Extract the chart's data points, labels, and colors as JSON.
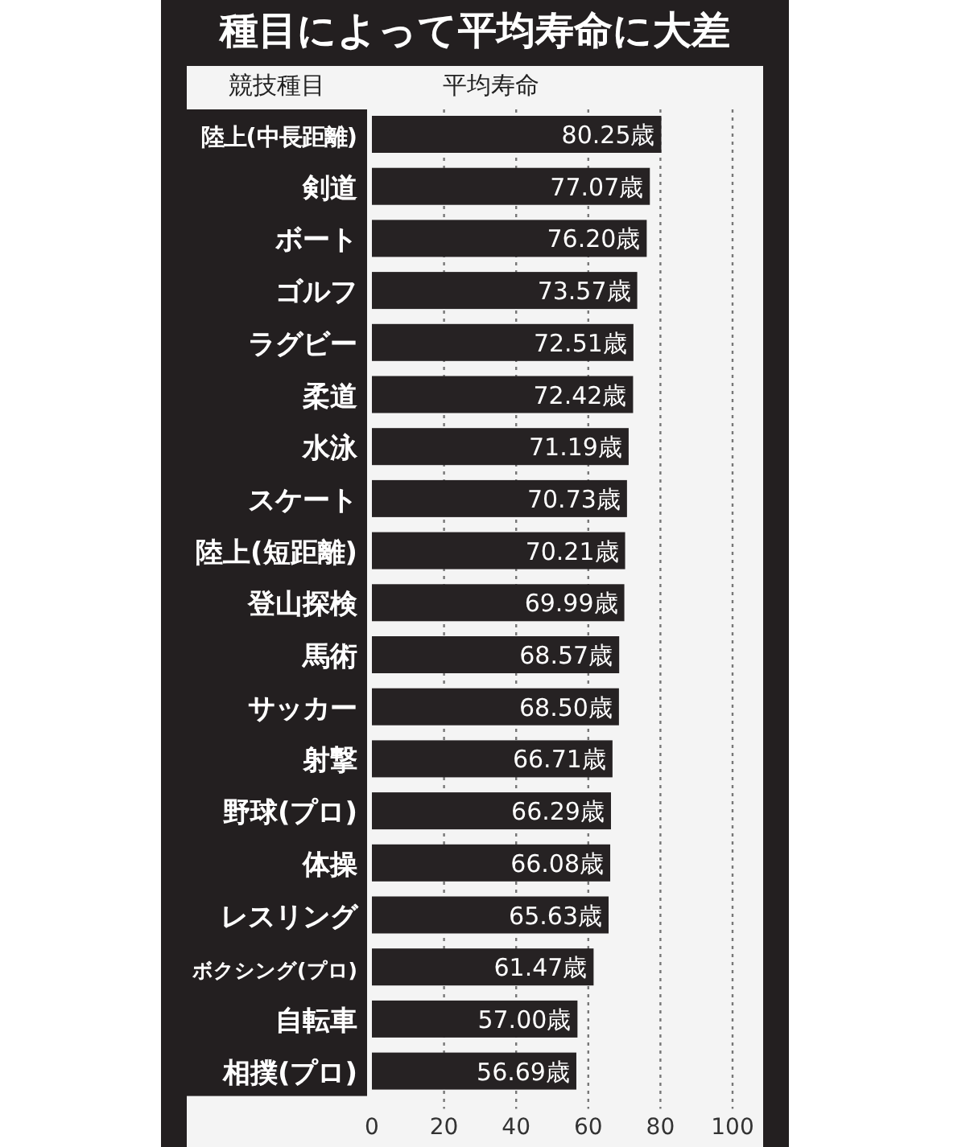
{
  "chart_data": {
    "type": "bar",
    "orientation": "horizontal",
    "title": "種目によって平均寿命に大差",
    "ylabel": "競技種目",
    "xlabel": "平均寿命",
    "categories": [
      "陸上(中長距離)",
      "剣道",
      "ボート",
      "ゴルフ",
      "ラグビー",
      "柔道",
      "水泳",
      "スケート",
      "陸上(短距離)",
      "登山探検",
      "馬術",
      "サッカー",
      "射撃",
      "野球(プロ)",
      "体操",
      "レスリング",
      "ボクシング(プロ)",
      "自転車",
      "相撲(プロ)"
    ],
    "values": [
      80.25,
      77.07,
      76.2,
      73.57,
      72.51,
      72.42,
      71.19,
      70.73,
      70.21,
      69.99,
      68.57,
      68.5,
      66.71,
      66.29,
      66.08,
      65.63,
      61.47,
      57.0,
      56.69
    ],
    "value_labels": [
      "80.25歳",
      "77.07歳",
      "76.20歳",
      "73.57歳",
      "72.51歳",
      "72.42歳",
      "71.19歳",
      "70.73歳",
      "70.21歳",
      "69.99歳",
      "68.57歳",
      "68.50歳",
      "66.71歳",
      "66.29歳",
      "66.08歳",
      "65.63歳",
      "61.47歳",
      "57.00歳",
      "56.69歳"
    ],
    "color": "#262223",
    "xlim": [
      0,
      100
    ],
    "xticks": [
      0,
      20,
      40,
      60,
      80,
      100
    ],
    "grid": "x"
  }
}
